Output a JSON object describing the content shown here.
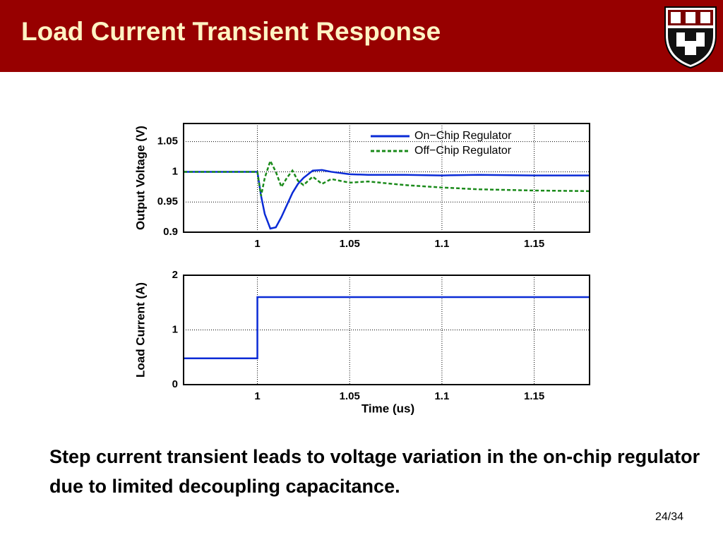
{
  "slide": {
    "title": "Load Current Transient Response",
    "caption": "Step current transient leads to voltage variation in the on-chip regulator due to limited decoupling capacitance.",
    "page": "24/34"
  },
  "chart_data": [
    {
      "type": "line",
      "y_label": "Output Voltage (V)",
      "x": [
        0.96,
        1.0,
        1.002,
        1.004,
        1.007,
        1.01,
        1.013,
        1.016,
        1.019,
        1.022,
        1.025,
        1.03,
        1.035,
        1.04,
        1.05,
        1.06,
        1.08,
        1.1,
        1.12,
        1.15,
        1.18
      ],
      "series": [
        {
          "name": "On−Chip Regulator",
          "color": "#0a2bd6",
          "dashed": false,
          "values": [
            1.0,
            1.0,
            0.96,
            0.93,
            0.906,
            0.908,
            0.925,
            0.945,
            0.965,
            0.98,
            0.99,
            1.002,
            1.003,
            1.0,
            0.996,
            0.995,
            0.995,
            0.994,
            0.995,
            0.994,
            0.994
          ]
        },
        {
          "name": "Off−Chip Regulator",
          "color": "#1a8a1a",
          "dashed": true,
          "values": [
            1.0,
            1.0,
            0.96,
            0.99,
            1.018,
            1.0,
            0.975,
            0.99,
            1.002,
            0.985,
            0.978,
            0.992,
            0.98,
            0.988,
            0.982,
            0.984,
            0.978,
            0.974,
            0.971,
            0.969,
            0.968
          ]
        }
      ],
      "xlim": [
        0.96,
        1.18
      ],
      "xticks": [
        1,
        1.05,
        1.1,
        1.15
      ],
      "ylim": [
        0.9,
        1.08
      ],
      "yticks": [
        0.9,
        0.95,
        1,
        1.05
      ],
      "grid": true,
      "legend": "top-right"
    },
    {
      "type": "line",
      "y_label": "Load Current (A)",
      "x_label": "Time (us)",
      "x": [
        0.96,
        1.0,
        1.0,
        1.18
      ],
      "series": [
        {
          "color": "#0a2bd6",
          "dashed": false,
          "values": [
            0.48,
            0.48,
            1.6,
            1.6
          ]
        }
      ],
      "xlim": [
        0.96,
        1.18
      ],
      "xticks": [
        1,
        1.05,
        1.1,
        1.15
      ],
      "ylim": [
        0,
        2
      ],
      "yticks": [
        0,
        1,
        2
      ],
      "grid": true
    }
  ]
}
